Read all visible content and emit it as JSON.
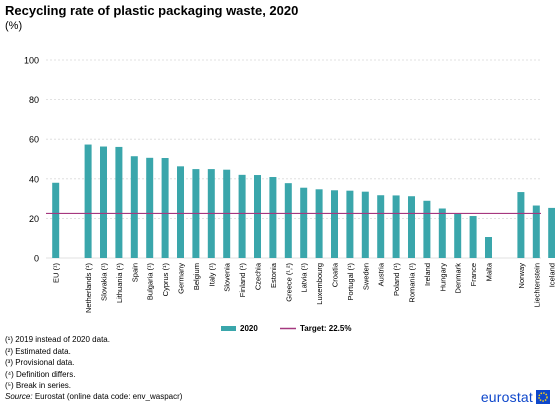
{
  "header": {
    "title": "Recycling rate of plastic packaging waste, 2020",
    "unit": "(%)"
  },
  "chart_data": {
    "type": "bar",
    "ylim": [
      0,
      100
    ],
    "yticks": [
      0,
      20,
      40,
      60,
      80,
      100
    ],
    "grid": true,
    "legend_position": "bottom",
    "colors": {
      "bars": "#3aa6ab",
      "target": "#a5387f",
      "grid": "#d9d9d9"
    },
    "groups": [
      {
        "categories": [
          "EU (¹)"
        ],
        "values": [
          38
        ]
      },
      {
        "categories": [
          "Netherlands (¹)",
          "Slovakia (¹)",
          "Lithuania (¹)",
          "Spain",
          "Bulgaria (¹)",
          "Cyprus (¹)",
          "Germany",
          "Belgium",
          "Italy (¹)",
          "Slovenia",
          "Finland (¹)",
          "Czechia",
          "Estonia",
          "Greece (¹,²)",
          "Latvia (¹)",
          "Luxembourg",
          "Croatia",
          "Portugal (¹)",
          "Sweden",
          "Austria",
          "Poland (¹)",
          "Romania (¹)",
          "Ireland",
          "Hungary",
          "Denmark",
          "France",
          "Malta"
        ],
        "values": [
          57.3,
          56.3,
          56.1,
          51.4,
          50.6,
          50.5,
          46.3,
          44.9,
          44.9,
          44.6,
          42.0,
          41.9,
          40.9,
          37.8,
          35.5,
          34.7,
          34.2,
          34.0,
          33.5,
          31.7,
          31.6,
          31.2,
          28.9,
          25.0,
          22.4,
          21.2,
          10.6
        ]
      },
      {
        "categories": [
          "Norway",
          "Liechtenstein",
          "Iceland"
        ],
        "values": [
          33.3,
          26.5,
          25.3
        ]
      }
    ],
    "target": {
      "name": "Target: 22.5%",
      "value": 22.5
    },
    "series": [
      {
        "name": "2020"
      }
    ]
  },
  "notes": [
    "(¹) 2019 instead of 2020 data.",
    "(²) Estimated data.",
    "(³) Provisional data.",
    "(⁴) Definition differs.",
    "(⁵) Break in series."
  ],
  "source": {
    "label": "Source:",
    "text": "Eurostat (online data code: env_waspacr)"
  },
  "brand": {
    "name": "eurostat",
    "icon": "eurostat-logo-icon"
  }
}
